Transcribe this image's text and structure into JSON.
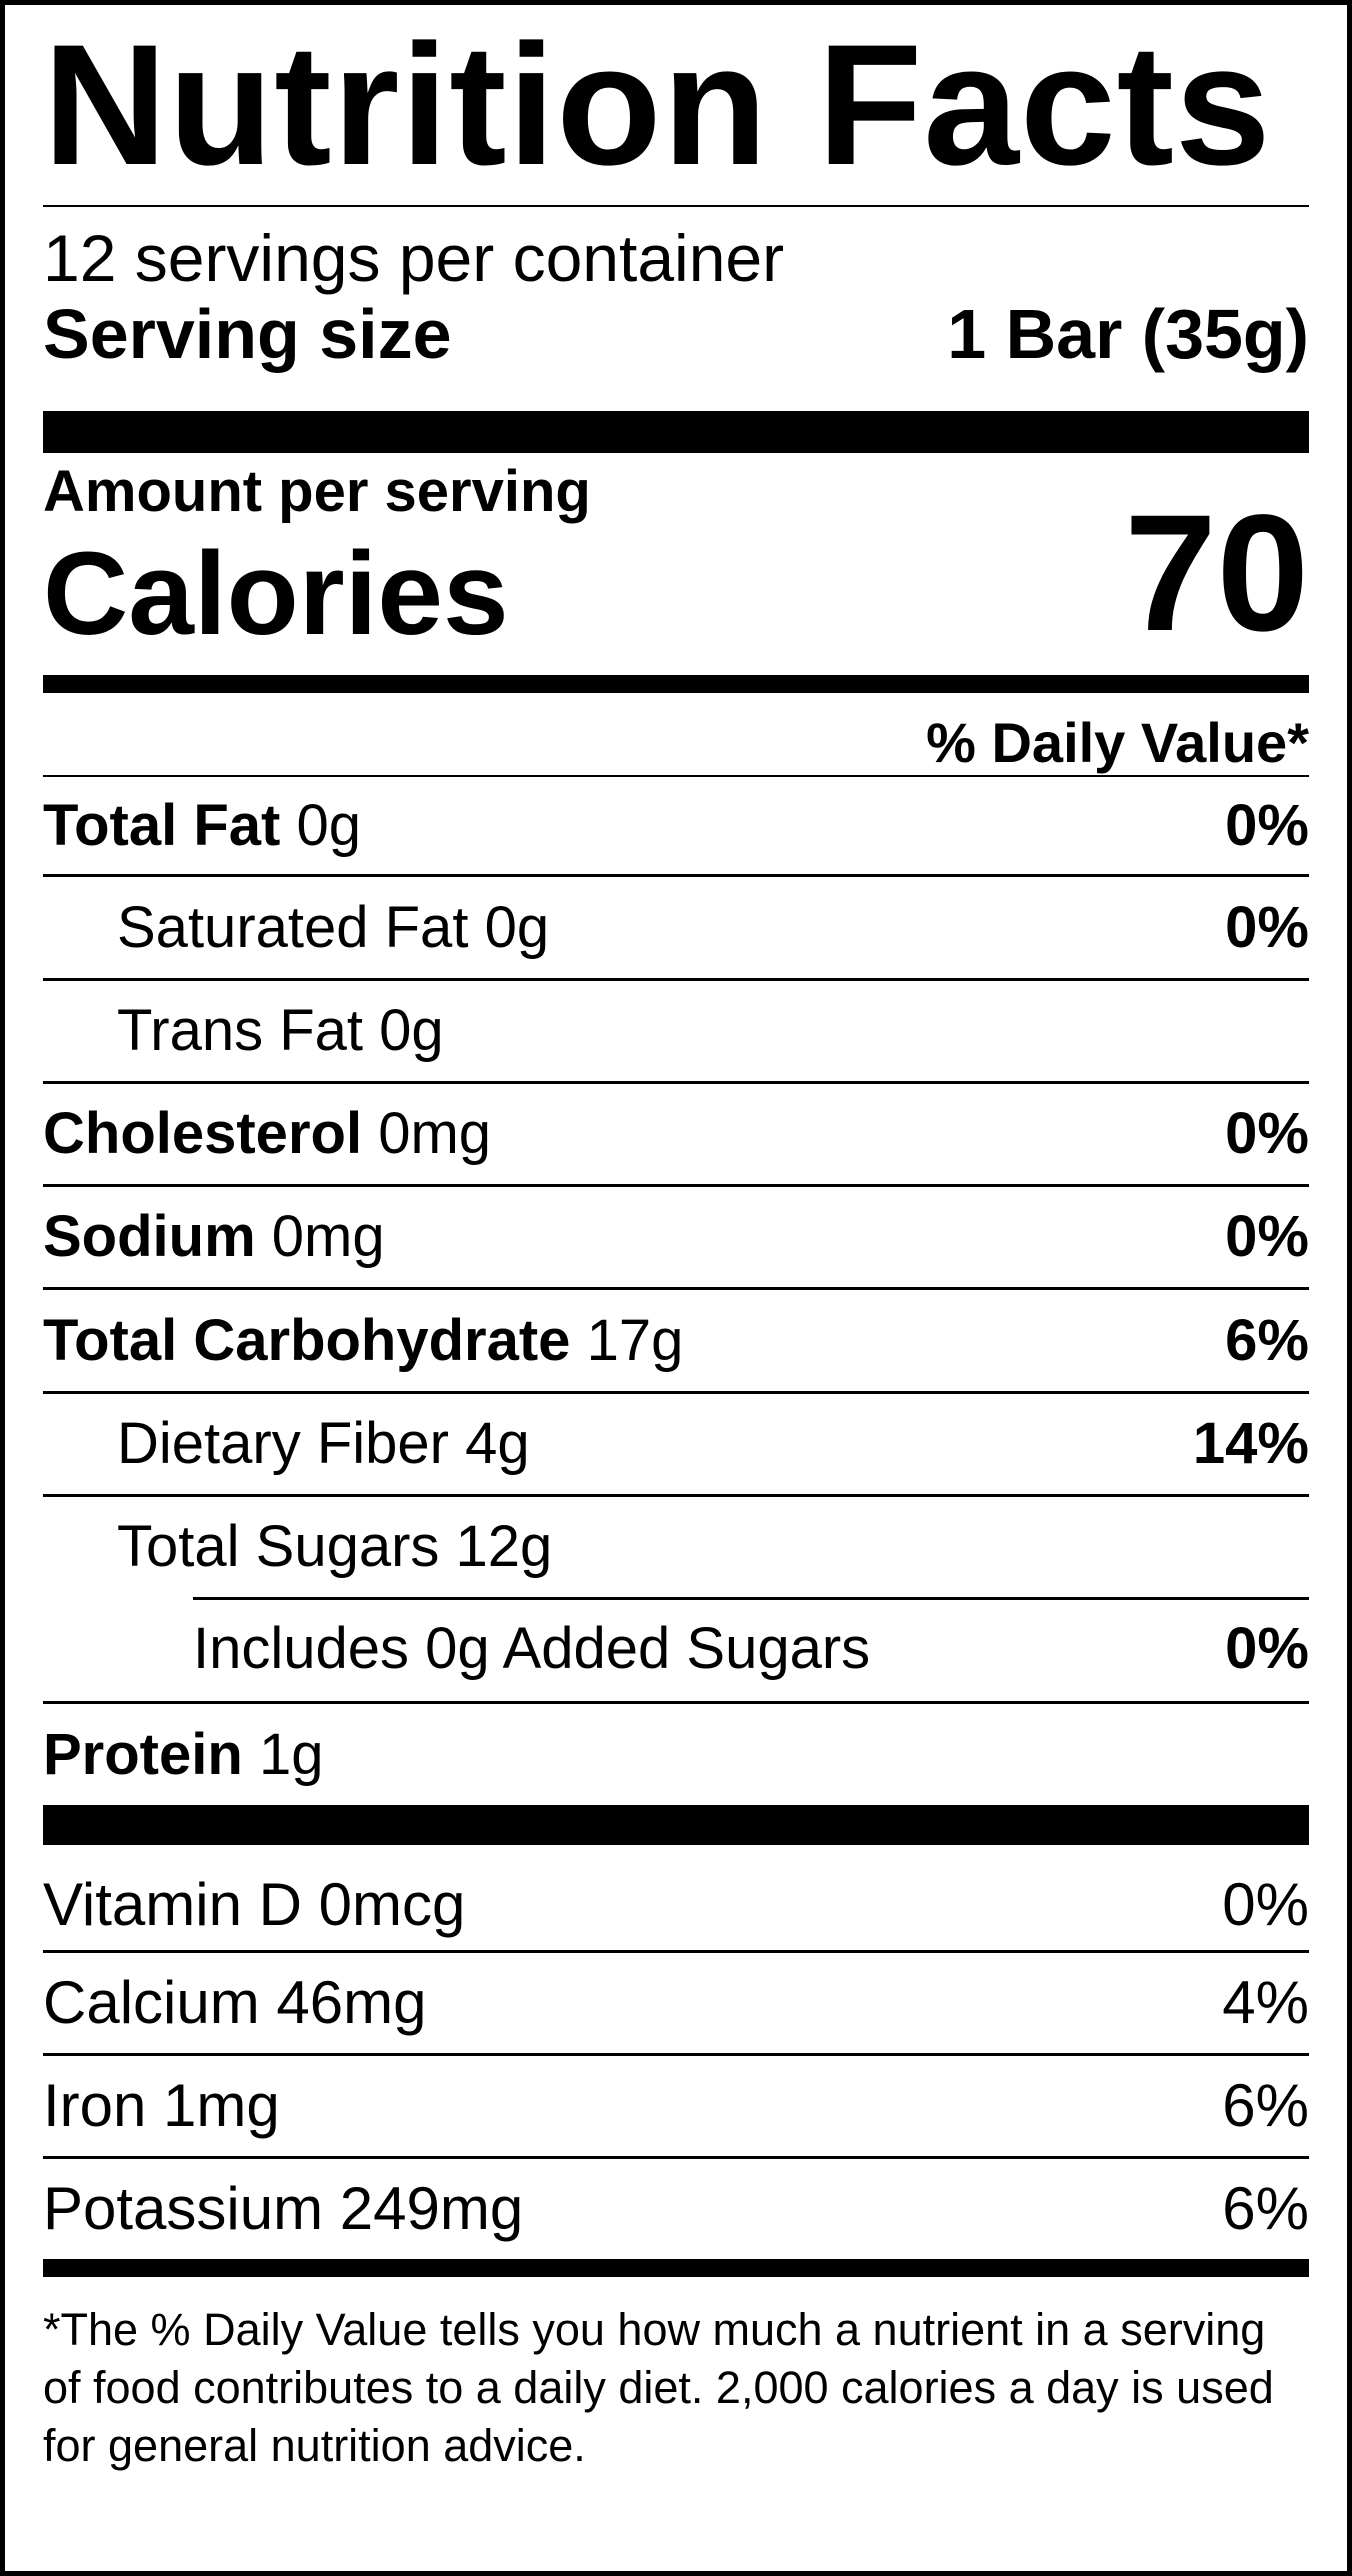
{
  "label": {
    "title": "Nutrition Facts",
    "servings_per_container": "12 servings per container",
    "serving_size_label": "Serving size",
    "serving_size_value": "1 Bar (35g)",
    "amount_per_serving": "Amount per serving",
    "calories_label": "Calories",
    "calories_value": "70",
    "daily_value_header": "% Daily Value*"
  },
  "nutrients": {
    "total_fat": {
      "name": "Total Fat",
      "amount": "0g",
      "dv": "0%"
    },
    "saturated_fat": {
      "name": "Saturated Fat",
      "amount": "0g",
      "dv": "0%"
    },
    "trans_fat": {
      "name": "Trans Fat",
      "amount": "0g"
    },
    "cholesterol": {
      "name": "Cholesterol",
      "amount": "0mg",
      "dv": "0%"
    },
    "sodium": {
      "name": "Sodium",
      "amount": "0mg",
      "dv": "0%"
    },
    "total_carbohydrate": {
      "name": "Total Carbohydrate",
      "amount": "17g",
      "dv": "6%"
    },
    "dietary_fiber": {
      "name": "Dietary Fiber",
      "amount": "4g",
      "dv": "14%"
    },
    "total_sugars": {
      "name": "Total Sugars",
      "amount": "12g"
    },
    "added_sugars": {
      "text": "Includes 0g Added Sugars",
      "dv": "0%"
    },
    "protein": {
      "name": "Protein",
      "amount": "1g"
    }
  },
  "vitamins": [
    {
      "text": "Vitamin D 0mcg",
      "dv": "0%"
    },
    {
      "text": "Calcium 46mg",
      "dv": "4%"
    },
    {
      "text": "Iron 1mg",
      "dv": "6%"
    },
    {
      "text": "Potassium 249mg",
      "dv": "6%"
    }
  ],
  "footnote": "*The % Daily Value tells you how much a nutrient in a serving of food contributes to a daily diet. 2,000 calories a day is used for general nutrition advice."
}
